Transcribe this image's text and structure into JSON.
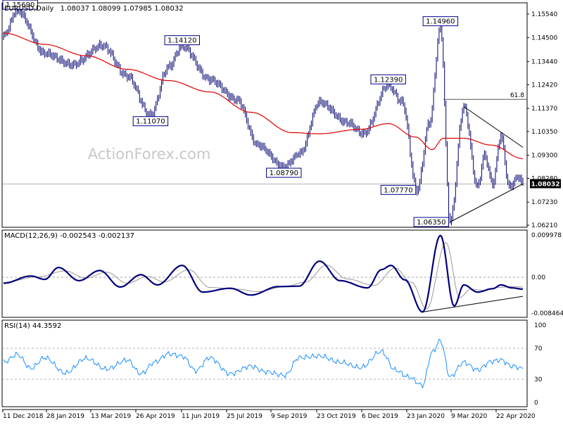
{
  "chart_data": {
    "type": "candlestick",
    "title": "EURUSD,Daily",
    "ohlc_header": "1.08037 1.08099 1.07985 1.08032",
    "watermark": "ActionForex.com",
    "colors": {
      "price": "#00006e",
      "ma": "#e00000",
      "macd": "#00007a",
      "signal": "#999999",
      "rsi": "#1e90ff",
      "fib": "#555555",
      "guide": "#999999"
    },
    "x_labels": [
      "11 Dec 2018",
      "28 Jan 2019",
      "13 Mar 2019",
      "26 Apr 2019",
      "11 Jun 2019",
      "25 Jul 2019",
      "9 Sep 2019",
      "23 Oct 2019",
      "6 Dec 2019",
      "23 Jan 2020",
      "9 Mar 2020",
      "22 Apr 2020"
    ],
    "price_pane": {
      "ylim": [
        1.0621,
        1.1554
      ],
      "y_ticks": [
        "1.15540",
        "1.14500",
        "1.13440",
        "1.12420",
        "1.11370",
        "1.10350",
        "1.09300",
        "1.08280",
        "1.07230",
        "1.06210"
      ],
      "current_price": "1.08032",
      "current_value": 1.0803,
      "fib_label": "61.8",
      "fib_level": 1.1177,
      "callouts": [
        {
          "label": "1.15690",
          "value": 1.1569,
          "day": 10
        },
        {
          "label": "1.14120",
          "value": 1.1412,
          "day": 130
        },
        {
          "label": "1.11070",
          "value": 1.1107,
          "day": 107
        },
        {
          "label": "1.08790",
          "value": 1.0879,
          "day": 204
        },
        {
          "label": "1.12390",
          "value": 1.1239,
          "day": 280
        },
        {
          "label": "1.14960",
          "value": 1.1496,
          "day": 318
        },
        {
          "label": "1.07770",
          "value": 1.0777,
          "day": 301
        },
        {
          "label": "1.06350",
          "value": 1.0635,
          "day": 325
        }
      ],
      "anchors": [
        [
          0,
          1.146
        ],
        [
          10,
          1.1569
        ],
        [
          30,
          1.138
        ],
        [
          50,
          1.133
        ],
        [
          72,
          1.1415
        ],
        [
          90,
          1.128
        ],
        [
          107,
          1.1107
        ],
        [
          120,
          1.132
        ],
        [
          130,
          1.1412
        ],
        [
          150,
          1.1265
        ],
        [
          170,
          1.1175
        ],
        [
          185,
          1.0975
        ],
        [
          204,
          1.0879
        ],
        [
          216,
          1.094
        ],
        [
          230,
          1.1165
        ],
        [
          250,
          1.1075
        ],
        [
          262,
          1.1025
        ],
        [
          280,
          1.1239
        ],
        [
          290,
          1.1165
        ],
        [
          301,
          1.0777
        ],
        [
          310,
          1.1075
        ],
        [
          318,
          1.1496
        ],
        [
          325,
          1.0635
        ],
        [
          335,
          1.1145
        ],
        [
          345,
          1.079
        ],
        [
          350,
          1.093
        ],
        [
          356,
          1.0805
        ],
        [
          362,
          1.1015
        ],
        [
          368,
          1.079
        ],
        [
          375,
          1.0835
        ],
        [
          378,
          1.0803
        ]
      ],
      "ma_anchors": [
        [
          0,
          1.147
        ],
        [
          30,
          1.142
        ],
        [
          60,
          1.137
        ],
        [
          90,
          1.131
        ],
        [
          120,
          1.126
        ],
        [
          150,
          1.121
        ],
        [
          180,
          1.112
        ],
        [
          210,
          1.103
        ],
        [
          230,
          1.1025
        ],
        [
          260,
          1.1045
        ],
        [
          280,
          1.107
        ],
        [
          300,
          1.101
        ],
        [
          312,
          1.0955
        ],
        [
          320,
          1.1005
        ],
        [
          335,
          1.1005
        ],
        [
          355,
          1.0975
        ],
        [
          378,
          1.0915
        ]
      ],
      "triangle": {
        "upper": [
          [
            335,
            1.1145
          ],
          [
            378,
            1.0965
          ]
        ],
        "lower": [
          [
            325,
            1.0635
          ],
          [
            378,
            1.0803
          ]
        ]
      }
    },
    "macd_pane": {
      "label": "MACD(12,26,9) -0.002543 -0.002137",
      "ylim": [
        -0.008464,
        0.009978
      ],
      "y_ticks": [
        "0.009978",
        "0.00",
        "-0.008464"
      ],
      "anchors": [
        [
          0,
          -0.0014
        ],
        [
          20,
          0.0003
        ],
        [
          30,
          -0.0005
        ],
        [
          40,
          0.0023
        ],
        [
          55,
          -0.0008
        ],
        [
          70,
          0.0016
        ],
        [
          85,
          -0.0023
        ],
        [
          100,
          0.0006
        ],
        [
          112,
          -0.0018
        ],
        [
          130,
          0.0028
        ],
        [
          145,
          -0.0035
        ],
        [
          165,
          -0.0026
        ],
        [
          180,
          -0.0042
        ],
        [
          200,
          -0.0022
        ],
        [
          215,
          -0.0021
        ],
        [
          230,
          0.0038
        ],
        [
          245,
          -0.0008
        ],
        [
          265,
          -0.0025
        ],
        [
          275,
          0.0018
        ],
        [
          282,
          0.0028
        ],
        [
          292,
          -0.0006
        ],
        [
          305,
          -0.0082
        ],
        [
          318,
          0.0099
        ],
        [
          328,
          -0.0068
        ],
        [
          335,
          -0.0018
        ],
        [
          345,
          -0.0035
        ],
        [
          356,
          -0.0027
        ],
        [
          362,
          -0.0018
        ],
        [
          370,
          -0.0025
        ],
        [
          378,
          -0.0028
        ]
      ],
      "signal_anchors": [
        [
          0,
          -0.0012
        ],
        [
          25,
          0.0001
        ],
        [
          45,
          0.0015
        ],
        [
          60,
          -0.0002
        ],
        [
          75,
          0.0012
        ],
        [
          90,
          -0.0014
        ],
        [
          105,
          0.0002
        ],
        [
          117,
          -0.0011
        ],
        [
          135,
          0.0018
        ],
        [
          150,
          -0.0024
        ],
        [
          170,
          -0.0028
        ],
        [
          185,
          -0.0034
        ],
        [
          205,
          -0.0022
        ],
        [
          220,
          -0.0011
        ],
        [
          235,
          0.0029
        ],
        [
          250,
          -0.0004
        ],
        [
          270,
          -0.0019
        ],
        [
          285,
          0.0022
        ],
        [
          297,
          -0.0012
        ],
        [
          308,
          -0.0075
        ],
        [
          322,
          0.0082
        ],
        [
          332,
          -0.0048
        ],
        [
          340,
          -0.0028
        ],
        [
          350,
          -0.0031
        ],
        [
          360,
          -0.0024
        ],
        [
          370,
          -0.0022
        ],
        [
          378,
          -0.0023
        ]
      ],
      "support_line": [
        [
          305,
          -0.0082
        ],
        [
          378,
          -0.0045
        ]
      ]
    },
    "rsi_pane": {
      "label": "RSI(14) 44.3592",
      "ylim": [
        0,
        100
      ],
      "y_ticks": [
        "100",
        "70",
        "30",
        "0"
      ],
      "levels": [
        70,
        30
      ],
      "anchors": [
        [
          0,
          52
        ],
        [
          10,
          62
        ],
        [
          20,
          44
        ],
        [
          30,
          58
        ],
        [
          45,
          38
        ],
        [
          60,
          57
        ],
        [
          75,
          43
        ],
        [
          90,
          55
        ],
        [
          100,
          37
        ],
        [
          110,
          52
        ],
        [
          120,
          63
        ],
        [
          130,
          60
        ],
        [
          140,
          41
        ],
        [
          150,
          58
        ],
        [
          165,
          37
        ],
        [
          180,
          47
        ],
        [
          190,
          40
        ],
        [
          205,
          35
        ],
        [
          215,
          58
        ],
        [
          230,
          60
        ],
        [
          245,
          52
        ],
        [
          260,
          45
        ],
        [
          275,
          66
        ],
        [
          285,
          42
        ],
        [
          295,
          33
        ],
        [
          305,
          22
        ],
        [
          312,
          65
        ],
        [
          318,
          80
        ],
        [
          325,
          33
        ],
        [
          335,
          52
        ],
        [
          345,
          42
        ],
        [
          355,
          53
        ],
        [
          362,
          55
        ],
        [
          370,
          47
        ],
        [
          378,
          44
        ]
      ]
    }
  }
}
